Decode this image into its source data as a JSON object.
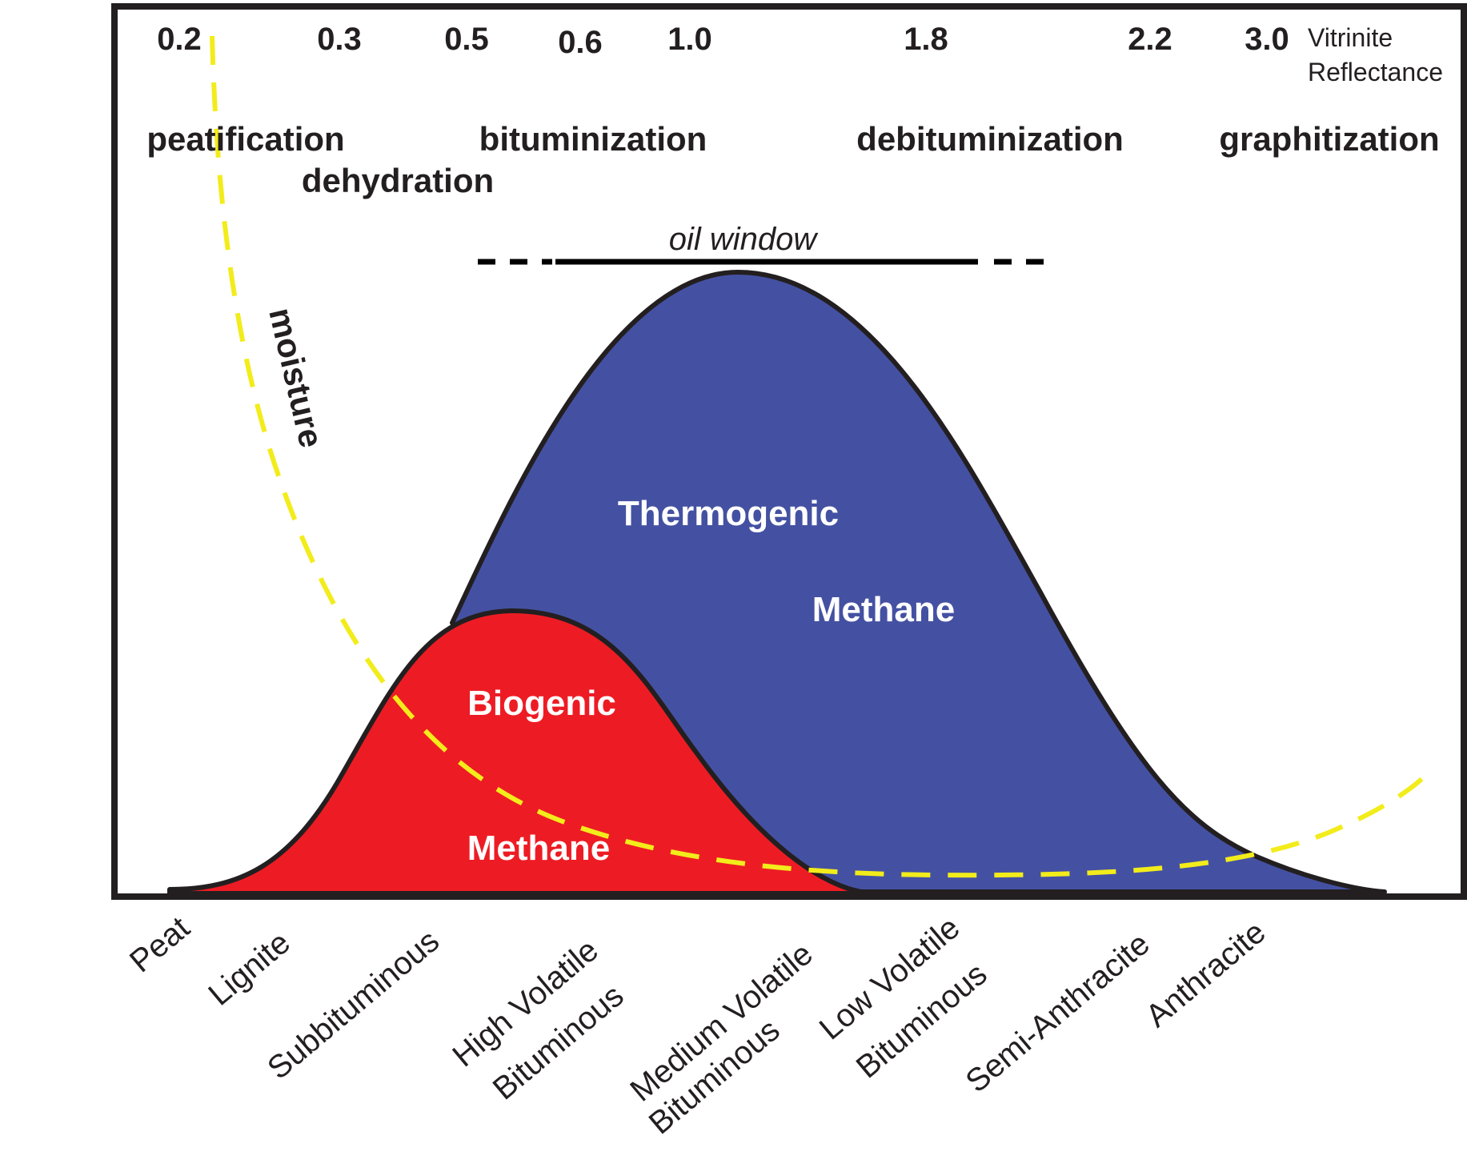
{
  "vitrinite_reflectance": {
    "values": [
      "0.2",
      "0.3",
      "0.5",
      "0.6",
      "1.0",
      "1.8",
      "2.2",
      "3.0"
    ],
    "label_line1": "Vitrinite",
    "label_line2": "Reflectance"
  },
  "processes": {
    "peatification": "peatification",
    "dehydration": "dehydration",
    "bituminization": "bituminization",
    "debituminization": "debituminization",
    "graphitization": "graphitization"
  },
  "oil_window": "oil window",
  "moisture": "moisture",
  "thermogenic": {
    "line1": "Thermogenic",
    "line2": "Methane"
  },
  "biogenic": {
    "line1": "Biogenic",
    "line2": "Methane"
  },
  "coal_ranks": {
    "peat": "Peat",
    "lignite": "Lignite",
    "subbituminous": "Subbituminous",
    "hvb_1": "High Volatile",
    "hvb_2": "Bituminous",
    "mvb_1": "Medium Volatile",
    "mvb_2": "Bituminous",
    "lvb_1": "Low Volatile",
    "lvb_2": "Bituminous",
    "semi_anthracite": "Semi-Anthracite",
    "anthracite": "Anthracite"
  },
  "colors": {
    "thermogenic_fill": "#4451a2",
    "biogenic_fill": "#ed1c24",
    "moisture_curve": "#f2ec1b",
    "outline": "#231f20",
    "label_on_fill": "#ffffff"
  }
}
